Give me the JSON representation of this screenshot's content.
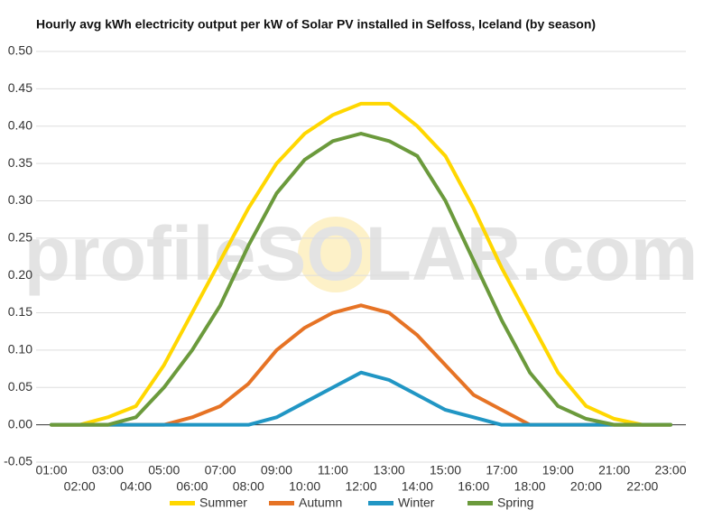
{
  "chart_data": {
    "type": "line",
    "title": "Hourly avg kWh electricity output per kW of Solar PV installed in Selfoss, Iceland (by season)",
    "watermark": "profileSOLAR.com",
    "categories": [
      "01:00",
      "02:00",
      "03:00",
      "04:00",
      "05:00",
      "06:00",
      "07:00",
      "08:00",
      "09:00",
      "10:00",
      "11:00",
      "12:00",
      "13:00",
      "14:00",
      "15:00",
      "16:00",
      "17:00",
      "18:00",
      "19:00",
      "20:00",
      "21:00",
      "22:00",
      "23:00"
    ],
    "series": [
      {
        "name": "Summer",
        "color": "#ffd700",
        "values": [
          0,
          0,
          0.01,
          0.025,
          0.08,
          0.15,
          0.22,
          0.29,
          0.35,
          0.39,
          0.415,
          0.43,
          0.43,
          0.4,
          0.36,
          0.29,
          0.21,
          0.14,
          0.07,
          0.025,
          0.008,
          0,
          0
        ]
      },
      {
        "name": "Autumn",
        "color": "#e67325",
        "values": [
          0,
          0,
          0,
          0,
          0,
          0.01,
          0.025,
          0.055,
          0.1,
          0.13,
          0.15,
          0.16,
          0.15,
          0.12,
          0.08,
          0.04,
          0.02,
          0,
          0,
          0,
          0,
          0,
          0
        ]
      },
      {
        "name": "Winter",
        "color": "#2196c4",
        "values": [
          0,
          0,
          0,
          0,
          0,
          0,
          0,
          0,
          0.01,
          0.03,
          0.05,
          0.07,
          0.06,
          0.04,
          0.02,
          0.01,
          0,
          0,
          0,
          0,
          0,
          0,
          0
        ]
      },
      {
        "name": "Spring",
        "color": "#6b9a3c",
        "values": [
          0,
          0,
          0,
          0.01,
          0.05,
          0.1,
          0.16,
          0.24,
          0.31,
          0.355,
          0.38,
          0.39,
          0.38,
          0.36,
          0.3,
          0.22,
          0.14,
          0.07,
          0.025,
          0.008,
          0,
          0,
          0
        ]
      }
    ],
    "ylim": [
      -0.05,
      0.5
    ],
    "yticks": [
      -0.05,
      {
        "value": 0,
        "label": "0.00"
      },
      0.05,
      {
        "value": 0.1,
        "label": "0.10"
      },
      0.15,
      {
        "value": 0.2,
        "label": "0.20"
      },
      0.25,
      {
        "value": 0.3,
        "label": "0.30"
      },
      0.35,
      {
        "value": 0.4,
        "label": "0.40"
      },
      0.45,
      {
        "value": 0.5,
        "label": "0.50"
      }
    ],
    "grid": true,
    "legend": "bottom"
  }
}
